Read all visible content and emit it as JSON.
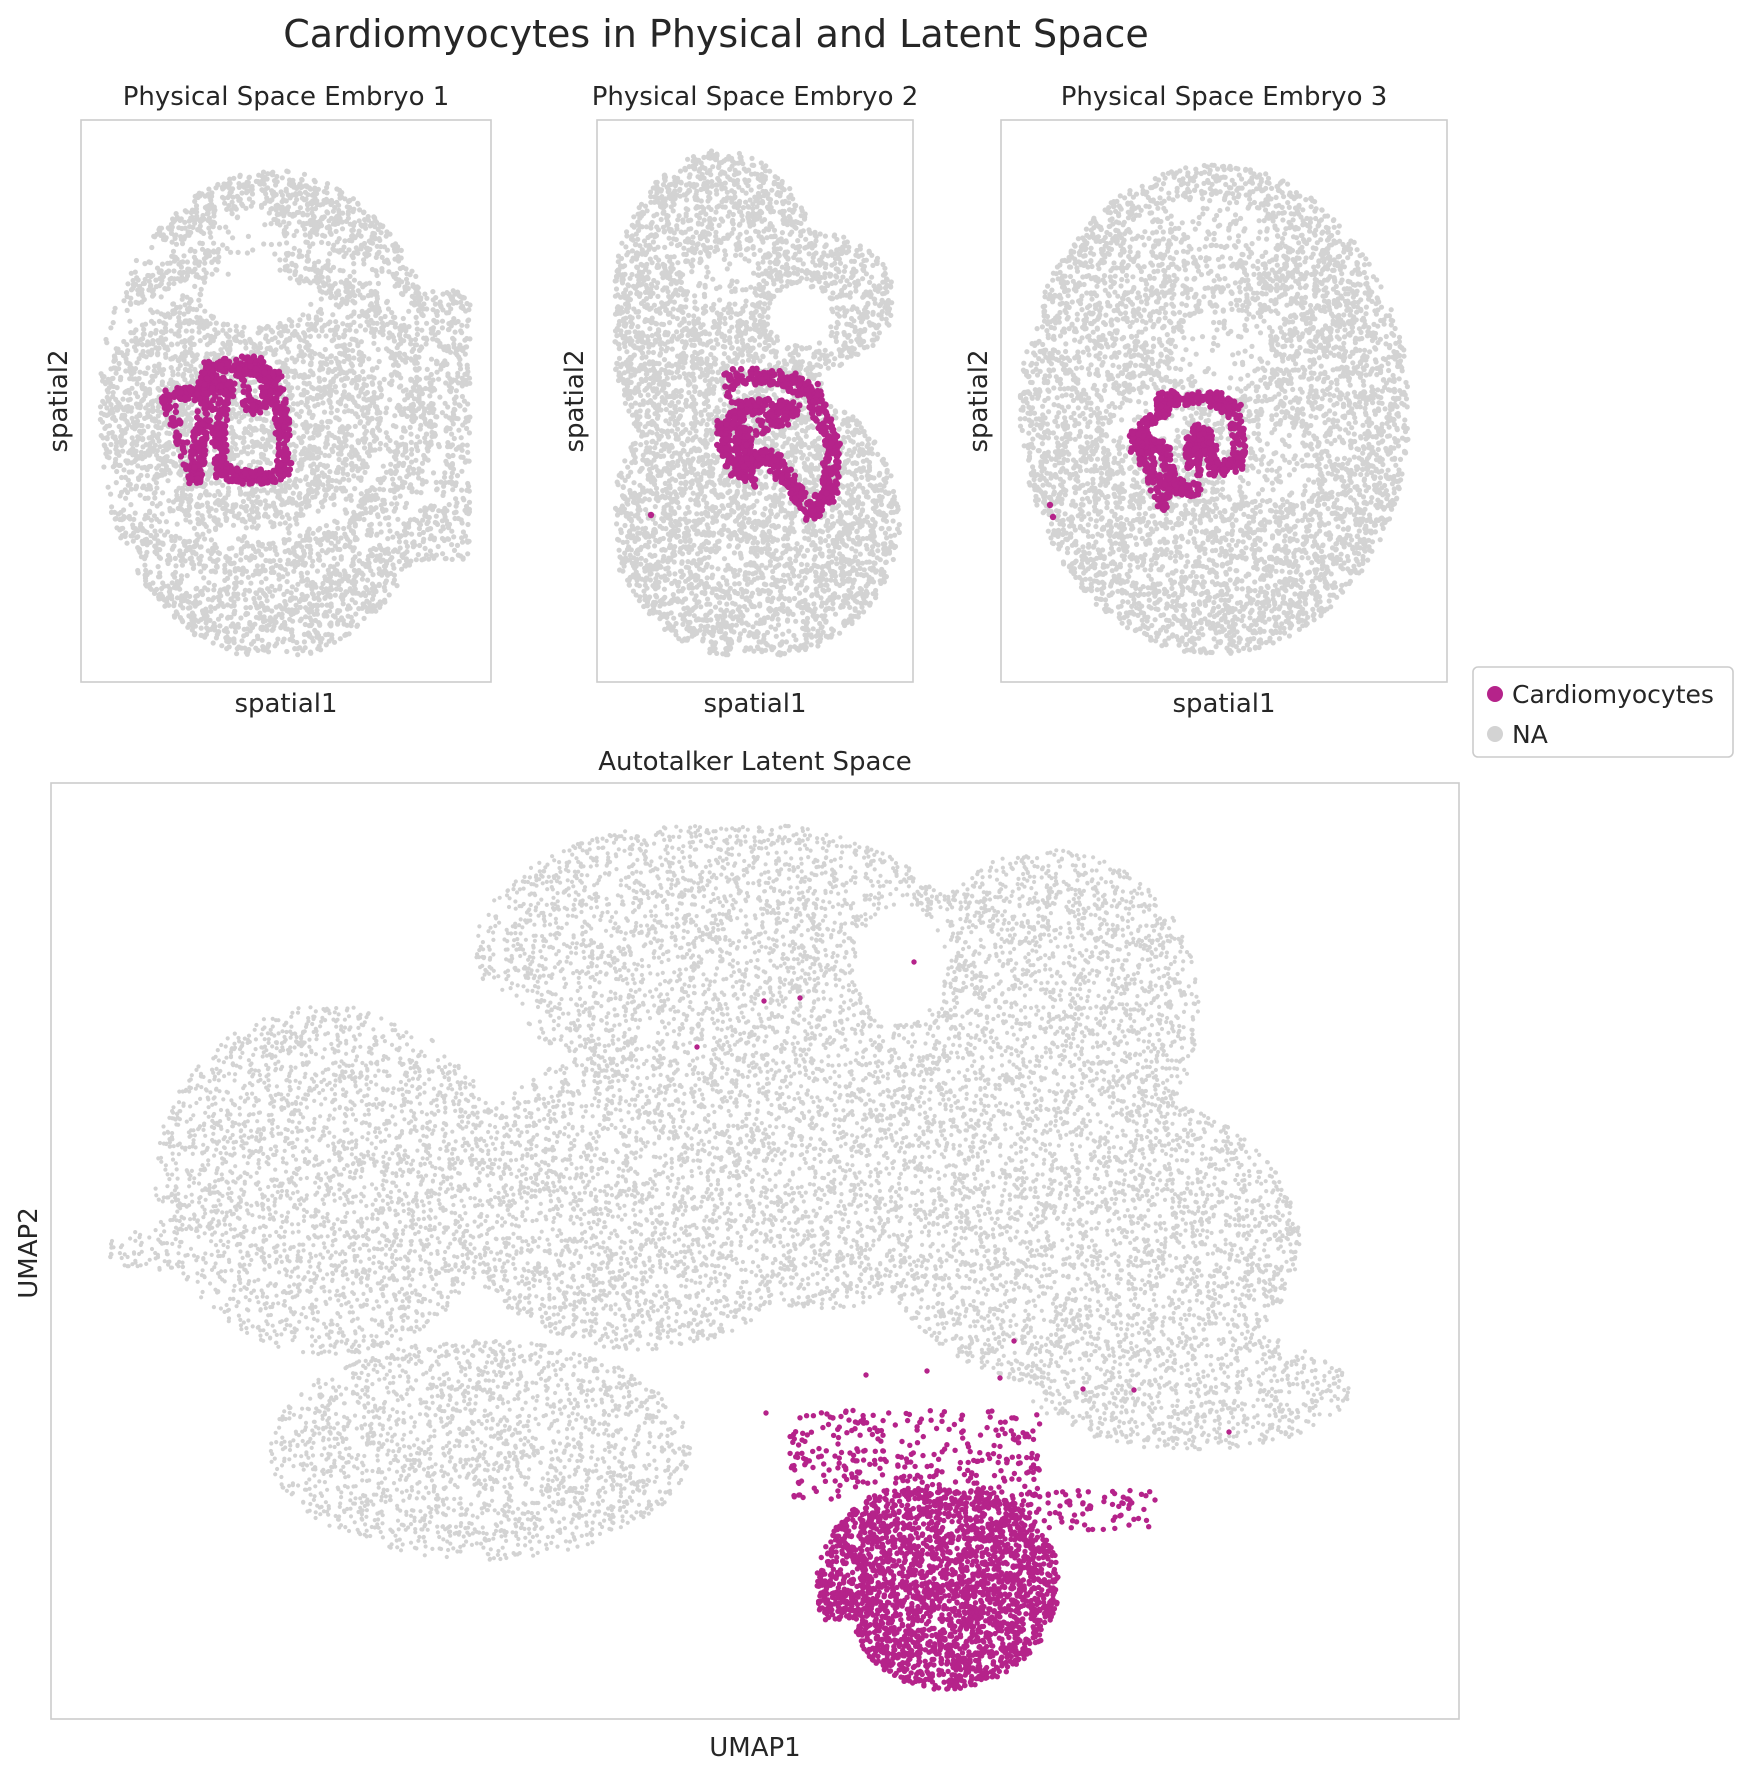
{
  "figure": {
    "title": "Cardiomyocytes in Physical and Latent Space"
  },
  "legend": {
    "entries": [
      {
        "label": "Cardiomyocytes",
        "color": "#b5238a"
      },
      {
        "label": "NA",
        "color": "#d3d3d3"
      }
    ],
    "placement": "right"
  },
  "chart_data": [
    {
      "type": "scatter",
      "title": "Physical Space Embryo 1",
      "xlabel": "spatial1",
      "ylabel": "spatial2",
      "grid": false,
      "ticks": false,
      "series": [
        {
          "name": "NA",
          "color": "#d3d3d3",
          "shape": "ring-shaped tissue section with concentric bands around a central gap"
        },
        {
          "name": "Cardiomyocytes",
          "color": "#b5238a",
          "shape": "closed loop left of centre, upper-middle of section"
        }
      ]
    },
    {
      "type": "scatter",
      "title": "Physical Space Embryo 2",
      "xlabel": "spatial1",
      "ylabel": "spatial2",
      "grid": false,
      "ticks": false,
      "series": [
        {
          "name": "NA",
          "color": "#d3d3d3",
          "shape": "tall tissue section with upper lobe and broad lower body"
        },
        {
          "name": "Cardiomyocytes",
          "color": "#b5238a",
          "shape": "tangled loop in central region plus one stray cell lower-left"
        }
      ]
    },
    {
      "type": "scatter",
      "title": "Physical Space Embryo 3",
      "xlabel": "spatial1",
      "ylabel": "spatial2",
      "grid": false,
      "ticks": false,
      "series": [
        {
          "name": "NA",
          "color": "#d3d3d3",
          "shape": "rounded tissue section with open interior channels"
        },
        {
          "name": "Cardiomyocytes",
          "color": "#b5238a",
          "shape": "branched cluster slightly left of centre plus two stray cells at left edge"
        }
      ]
    },
    {
      "type": "scatter",
      "title": "Autotalker Latent Space",
      "xlabel": "UMAP1",
      "ylabel": "UMAP2",
      "grid": false,
      "ticks": false,
      "series": [
        {
          "name": "NA",
          "color": "#d3d3d3",
          "shape": "large multi-lobed UMAP cloud spanning the panel"
        },
        {
          "name": "Cardiomyocytes",
          "color": "#b5238a",
          "shape": "dense cluster at bottom-centre with sparse spread upward and a few isolated points"
        }
      ]
    }
  ]
}
